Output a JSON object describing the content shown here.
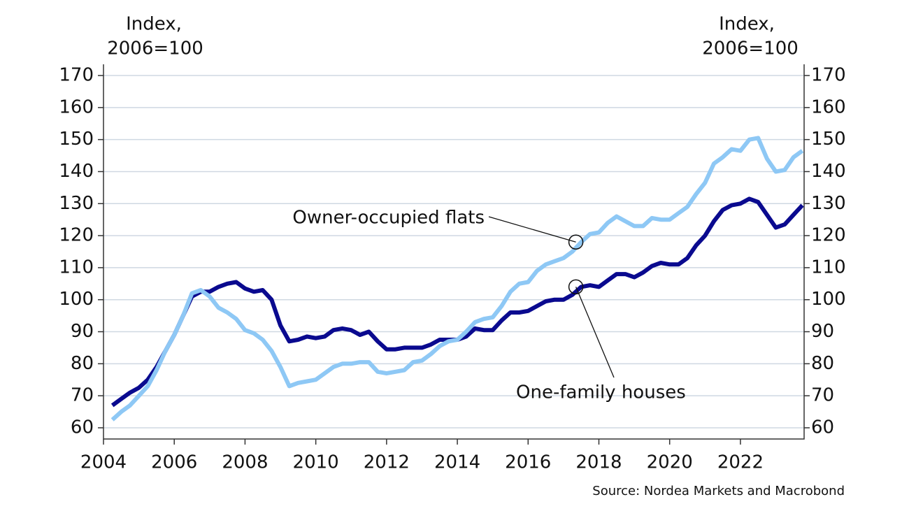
{
  "chart_data": {
    "type": "line",
    "ylabel_lines": [
      "Index,",
      "2006=100"
    ],
    "y2label_lines": [
      "Index,",
      "2006=100"
    ],
    "source": "Source: Nordea Markets and Macrobond",
    "x": [
      2004.25,
      2004.5,
      2004.75,
      2005,
      2005.25,
      2005.5,
      2005.75,
      2006,
      2006.25,
      2006.5,
      2006.75,
      2007,
      2007.25,
      2007.5,
      2007.75,
      2008,
      2008.25,
      2008.5,
      2008.75,
      2009,
      2009.25,
      2009.5,
      2009.75,
      2010,
      2010.25,
      2010.5,
      2010.75,
      2011,
      2011.25,
      2011.5,
      2011.75,
      2012,
      2012.25,
      2012.5,
      2012.75,
      2013,
      2013.25,
      2013.5,
      2013.75,
      2014,
      2014.25,
      2014.5,
      2014.75,
      2015,
      2015.25,
      2015.5,
      2015.75,
      2016,
      2016.25,
      2016.5,
      2016.75,
      2017,
      2017.25,
      2017.5,
      2017.75,
      2018,
      2018.25,
      2018.5,
      2018.75,
      2019,
      2019.25,
      2019.5,
      2019.75,
      2020,
      2020.25,
      2020.5,
      2020.75,
      2021,
      2021.25,
      2021.5,
      2021.75,
      2022,
      2022.25,
      2022.5,
      2022.75,
      2023,
      2023.25,
      2023.5,
      2023.75
    ],
    "series": [
      {
        "name": "One-family houses",
        "color": "#0a0a8f",
        "values": [
          67,
          69,
          71,
          72.5,
          75,
          79,
          84,
          89,
          95,
          101,
          102.5,
          102.5,
          104,
          105,
          105.5,
          103.5,
          102.5,
          103,
          100,
          92,
          87,
          87.5,
          88.5,
          88,
          88.5,
          90.5,
          91,
          90.5,
          89,
          90,
          87,
          84.5,
          84.5,
          85,
          85,
          85,
          86,
          87.5,
          87.5,
          87.5,
          88.5,
          91,
          90.5,
          90.5,
          93.5,
          96,
          96,
          96.5,
          98,
          99.5,
          100,
          100,
          101.5,
          104,
          104.5,
          104,
          106,
          108,
          108,
          107,
          108.5,
          110.5,
          111.5,
          111,
          111,
          113,
          117,
          120,
          124.5,
          128,
          129.5,
          130,
          131.5,
          130.5,
          126.5,
          122.5,
          123.5,
          126.5,
          129.5
        ]
      },
      {
        "name": "Owner-occupied flats",
        "color": "#8ec8f5",
        "values": [
          62.5,
          65,
          67,
          70,
          73,
          78,
          84,
          89,
          95,
          102,
          103,
          101,
          97.5,
          96,
          94,
          90.5,
          89.5,
          87.5,
          84,
          79,
          73,
          74,
          74.5,
          75,
          77,
          79,
          80,
          80,
          80.5,
          80.5,
          77.5,
          77,
          77.5,
          78,
          80.5,
          81,
          83,
          85.5,
          87,
          87.5,
          90,
          93,
          94,
          94.5,
          98,
          102.5,
          105,
          105.5,
          109,
          111,
          112,
          113,
          115,
          118,
          120.5,
          121,
          124,
          126,
          124.5,
          123,
          123,
          125.5,
          125,
          125,
          127,
          129,
          133,
          136.5,
          142.5,
          144.5,
          147,
          146.5,
          150,
          150.5,
          144,
          140,
          140.5,
          144.5,
          146.5
        ]
      }
    ],
    "annotations": [
      {
        "text": "Owner-occupied flats",
        "x": 2017.35,
        "y": 118
      },
      {
        "text": "One-family houses",
        "x": 2017.35,
        "y": 104
      }
    ],
    "xlim": [
      2004,
      2023.8
    ],
    "xticks": [
      2004,
      2006,
      2008,
      2010,
      2012,
      2014,
      2016,
      2018,
      2020,
      2022
    ],
    "ylim": [
      56.5,
      173.5
    ],
    "yticks": [
      60,
      70,
      80,
      90,
      100,
      110,
      120,
      130,
      140,
      150,
      160,
      170
    ],
    "y2lim": [
      56.5,
      173.5
    ],
    "y2ticks": [
      60,
      70,
      80,
      90,
      100,
      110,
      120,
      130,
      140,
      150,
      160,
      170
    ],
    "grid": true
  }
}
